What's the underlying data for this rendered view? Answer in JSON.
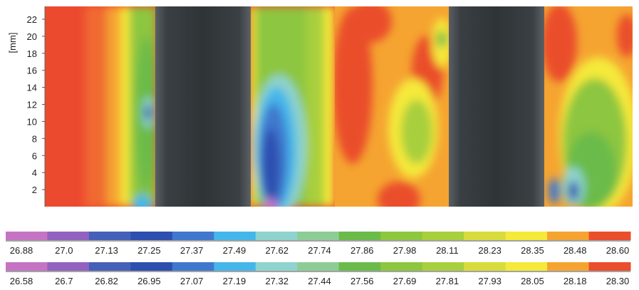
{
  "chart_data": {
    "type": "heatmap",
    "title": "",
    "ylabel": "[mm]",
    "y_ticks": [
      "2",
      "4",
      "6",
      "8",
      "10",
      "12",
      "14",
      "16",
      "18",
      "20",
      "22"
    ],
    "ylim": [
      0,
      23.5
    ],
    "panels": [
      {
        "name": "left",
        "features": [
          "cold spot near y = 12 mm right of first bar",
          "broad cold zone right of second bar"
        ]
      },
      {
        "name": "right",
        "features": [
          "cold spots near y = 3.5 mm right of second bar"
        ]
      }
    ],
    "colorbars": [
      {
        "colors": [
          "#c574c4",
          "#9262bf",
          "#4560b8",
          "#2d4fb0",
          "#3f78cd",
          "#45b6ea",
          "#8ed3cd",
          "#8dcd95",
          "#6bbb4a",
          "#8dc63f",
          "#a8cf3d",
          "#d7dc3c",
          "#f5e93a",
          "#f5a431",
          "#ea4e2c"
        ],
        "labels": [
          "26.88",
          "27.0",
          "27.13",
          "27.25",
          "27.37",
          "27.49",
          "27.62",
          "27.74",
          "27.86",
          "27.98",
          "28.11",
          "28.23",
          "28.35",
          "28.48",
          "28.60"
        ]
      },
      {
        "colors": [
          "#c574c4",
          "#9262bf",
          "#4560b8",
          "#2d4fb0",
          "#3f78cd",
          "#45b6ea",
          "#8ed3cd",
          "#8dcd95",
          "#6bbb4a",
          "#8dc63f",
          "#a8cf3d",
          "#d7dc3c",
          "#f5e93a",
          "#f5a431",
          "#ea4e2c"
        ],
        "labels": [
          "26.58",
          "26.7",
          "26.82",
          "26.95",
          "27.07",
          "27.19",
          "27.32",
          "27.44",
          "27.56",
          "27.69",
          "27.81",
          "27.93",
          "28.05",
          "28.18",
          "28.30"
        ]
      }
    ]
  }
}
